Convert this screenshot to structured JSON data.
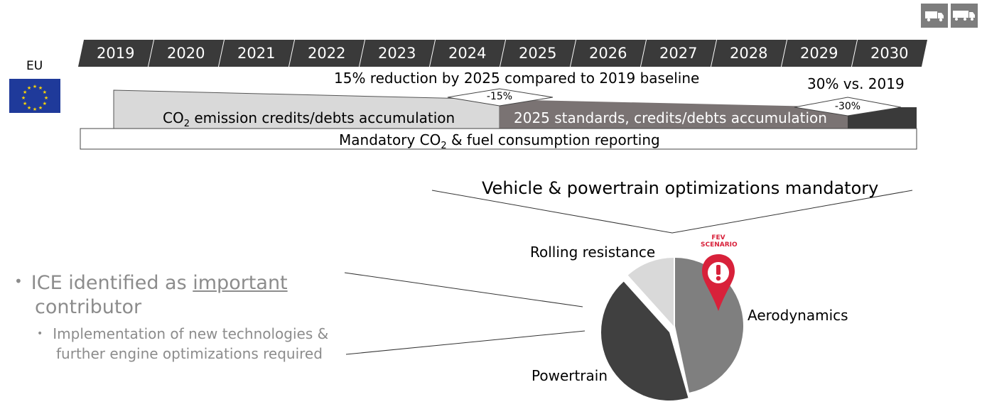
{
  "region_label": "EU",
  "years": [
    "2019",
    "2020",
    "2021",
    "2022",
    "2023",
    "2024",
    "2025",
    "2026",
    "2027",
    "2028",
    "2029",
    "2030"
  ],
  "timeline": {
    "target_2025": "15% reduction by 2025 compared to 2019 baseline",
    "target_2030": "30% vs. 2019",
    "marker_15": "-15%",
    "marker_30": "-30%",
    "credits_prefix": "CO",
    "credits_sub": "2",
    "credits_suffix": " emission credits/debts accumulation",
    "standards_label": "2025 standards, credits/debts accumulation",
    "reporting_prefix": "Mandatory CO",
    "reporting_sub": "2",
    "reporting_suffix": " & fuel consumption reporting"
  },
  "optimizations_title": "Vehicle & powertrain optimizations mandatory",
  "pie": {
    "labels": {
      "rolling": "Rolling resistance",
      "aero": "Aerodynamics",
      "powertrain": "Powertrain"
    },
    "colors": {
      "rolling": "#d9d9d9",
      "aero": "#7f7f7f",
      "powertrain": "#404040",
      "marker": "#d8213a"
    },
    "marker_text_1": "FEV",
    "marker_text_2": "SCENARIO"
  },
  "bullets": {
    "main_prefix": "ICE identified as ",
    "main_underlined": "important",
    "main_line2": "contributor",
    "sub_line1": "Implementation of new technologies &",
    "sub_line2": "further engine optimizations required"
  },
  "icons": [
    "van-icon",
    "truck-icon",
    "eu-flag-icon",
    "fev-scenario-pin-icon"
  ]
}
